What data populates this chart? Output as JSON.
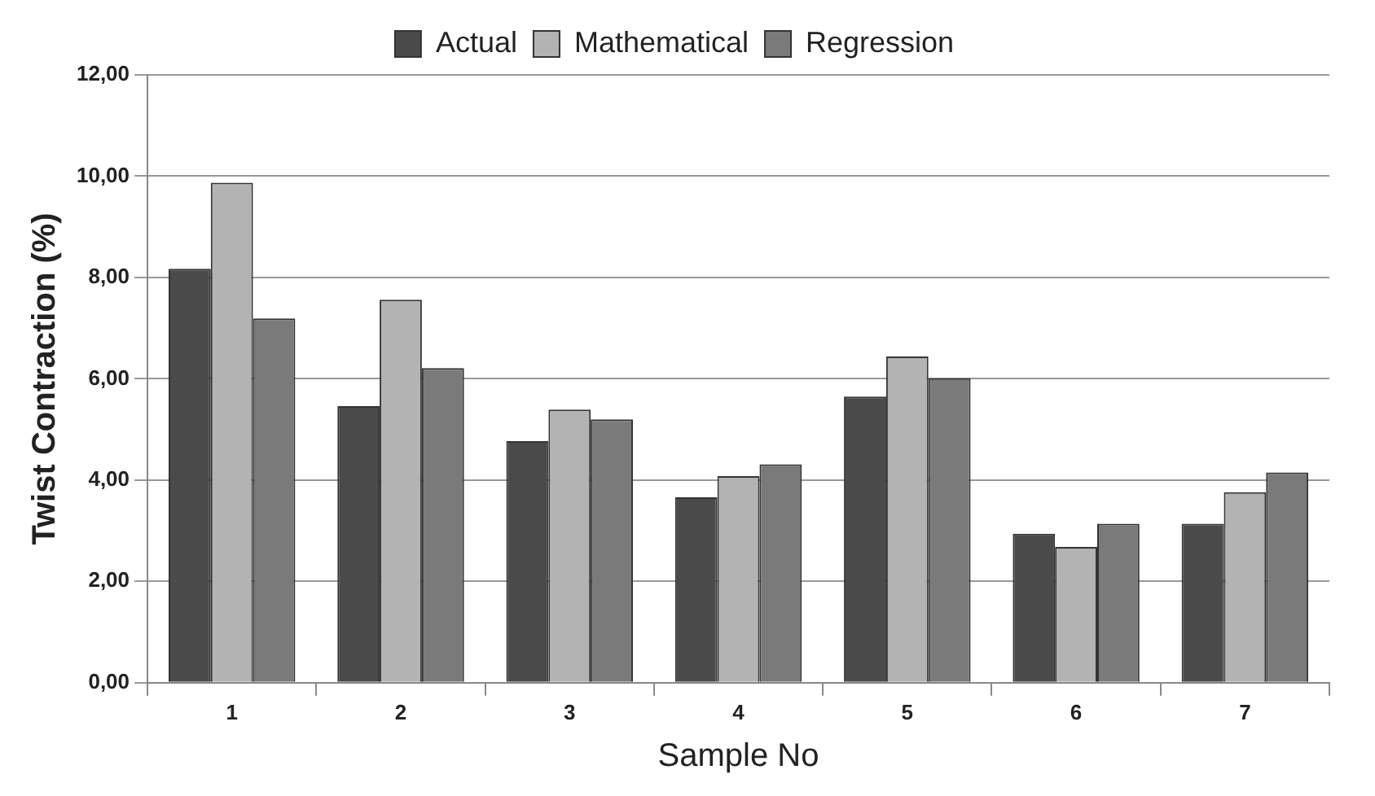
{
  "chart_data": {
    "type": "bar",
    "xlabel": "Sample No",
    "ylabel": "Twist Contraction (%)",
    "categories": [
      "1",
      "2",
      "3",
      "4",
      "5",
      "6",
      "7"
    ],
    "series": [
      {
        "name": "Actual",
        "color": "#4a4a4a",
        "values": [
          8.17,
          5.46,
          4.77,
          3.66,
          5.65,
          2.94,
          3.14
        ]
      },
      {
        "name": "Mathematical",
        "color": "#b3b3b3",
        "values": [
          9.87,
          7.56,
          5.39,
          4.08,
          6.44,
          2.68,
          3.76
        ]
      },
      {
        "name": "Regression",
        "color": "#7a7a7a",
        "values": [
          7.19,
          6.21,
          5.2,
          4.31,
          6.01,
          3.14,
          4.15
        ]
      }
    ],
    "ylim": [
      0,
      12
    ],
    "yticks": [
      {
        "value": 0,
        "label": "0,00"
      },
      {
        "value": 2,
        "label": "2,00"
      },
      {
        "value": 4,
        "label": "4,00"
      },
      {
        "value": 6,
        "label": "6,00"
      },
      {
        "value": 8,
        "label": "8,00"
      },
      {
        "value": 10,
        "label": "10,00"
      },
      {
        "value": 12,
        "label": "12,00"
      }
    ],
    "grid": "y",
    "legend": "top"
  }
}
